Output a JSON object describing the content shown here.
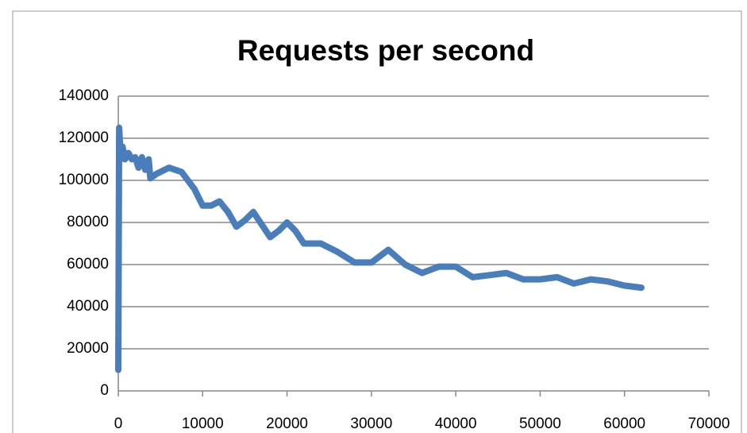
{
  "chart_data": {
    "type": "line",
    "title": "Requests per second",
    "x": [
      0,
      100,
      300,
      500,
      800,
      1200,
      1600,
      2000,
      2400,
      2800,
      3200,
      3600,
      3800,
      4500,
      6000,
      7500,
      9000,
      10000,
      11000,
      12000,
      13000,
      14000,
      15000,
      16000,
      17000,
      18000,
      19000,
      20000,
      21000,
      22000,
      24000,
      26000,
      28000,
      30000,
      32000,
      34000,
      36000,
      38000,
      40000,
      42000,
      44000,
      46000,
      48000,
      50000,
      52000,
      54000,
      56000,
      58000,
      60000,
      62000
    ],
    "values": [
      10000,
      125000,
      110000,
      116000,
      110000,
      113000,
      110000,
      111000,
      106000,
      111000,
      105000,
      110000,
      101000,
      103000,
      106000,
      104000,
      96000,
      88000,
      88000,
      90000,
      85000,
      78000,
      81000,
      85000,
      79000,
      73000,
      76000,
      80000,
      76000,
      70000,
      70000,
      66000,
      61000,
      61000,
      67000,
      60000,
      56000,
      59000,
      59000,
      54000,
      55000,
      56000,
      53000,
      53000,
      54000,
      51000,
      53000,
      52000,
      50000,
      49000
    ],
    "color": "#4a7ebb",
    "xlim": [
      0,
      70000
    ],
    "xticks": [
      0,
      10000,
      20000,
      30000,
      40000,
      50000,
      60000,
      70000
    ],
    "ylim": [
      0,
      140000
    ],
    "yticks": [
      0,
      20000,
      40000,
      60000,
      80000,
      100000,
      120000,
      140000
    ],
    "grid": true
  }
}
